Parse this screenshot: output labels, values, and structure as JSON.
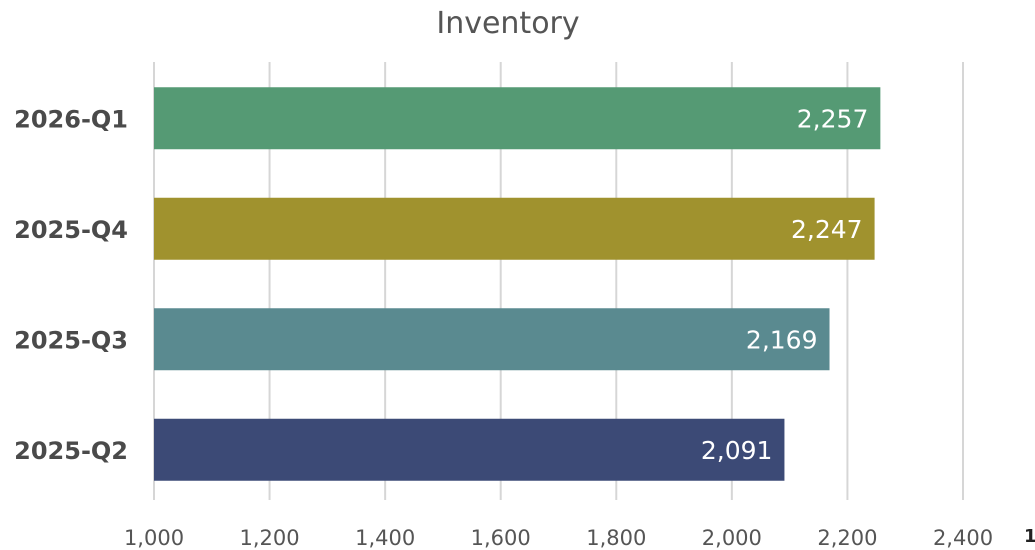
{
  "chart_data": {
    "type": "bar",
    "orientation": "horizontal",
    "title": "Inventory",
    "categories": [
      "2026-Q1",
      "2025-Q4",
      "2025-Q3",
      "2025-Q2"
    ],
    "values": [
      2257,
      2247,
      2169,
      2091
    ],
    "value_labels": [
      "2,257",
      "2,247",
      "2,169",
      "2,091"
    ],
    "colors": [
      "#559a74",
      "#a0922e",
      "#5a8a90",
      "#3c4a76"
    ],
    "xlim": [
      1000,
      2500
    ],
    "xticks": [
      1000,
      1200,
      1400,
      1600,
      1800,
      2000,
      2200,
      2400
    ],
    "xtick_labels": [
      "1,000",
      "1,200",
      "1,400",
      "1,600",
      "1,800",
      "2,000",
      "2,200",
      "2,400"
    ],
    "clipped_tick_label": "1",
    "grid": true,
    "xlabel": "",
    "ylabel": ""
  }
}
